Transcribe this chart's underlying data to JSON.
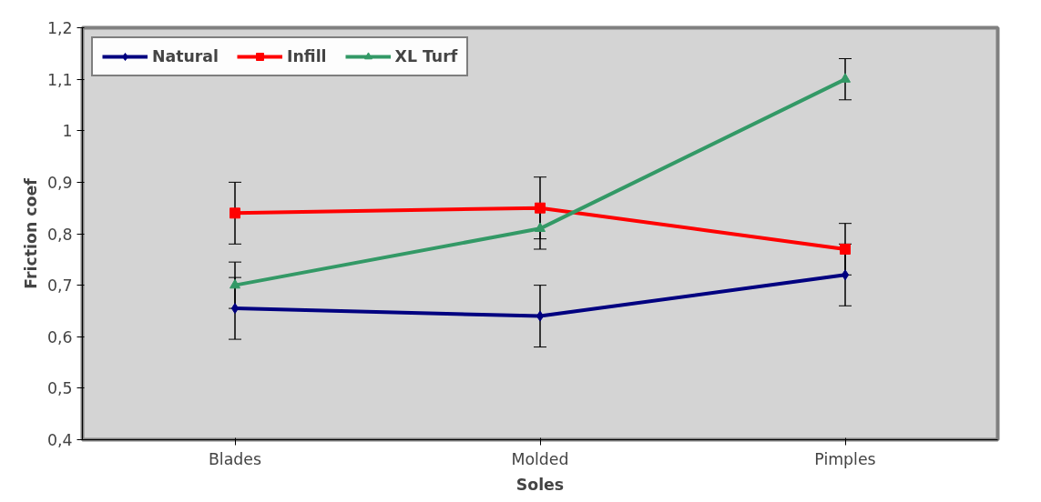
{
  "chart_data": {
    "type": "line",
    "xlabel": "Soles",
    "ylabel": "Friction coef",
    "categories": [
      "Blades",
      "Molded",
      "Pimples"
    ],
    "series": [
      {
        "name": "Natural",
        "color": "#000080",
        "marker": "diamond",
        "values": [
          0.655,
          0.64,
          0.72
        ],
        "errors": [
          0.06,
          0.06,
          0.06
        ]
      },
      {
        "name": "Infill",
        "color": "#ff0000",
        "marker": "square",
        "values": [
          0.84,
          0.85,
          0.77
        ],
        "errors": [
          0.06,
          0.06,
          0.05
        ]
      },
      {
        "name": "XL Turf",
        "color": "#339966",
        "marker": "triangle",
        "values": [
          0.7,
          0.81,
          1.1
        ],
        "errors": [
          0.045,
          0.04,
          0.04
        ]
      }
    ],
    "ylim": [
      0.4,
      1.2
    ],
    "yticks": [
      {
        "value": 0.4,
        "label": "0,4"
      },
      {
        "value": 0.5,
        "label": "0,5"
      },
      {
        "value": 0.6,
        "label": "0,6"
      },
      {
        "value": 0.7,
        "label": "0,7"
      },
      {
        "value": 0.8,
        "label": "0,8"
      },
      {
        "value": 0.9,
        "label": "0,9"
      },
      {
        "value": 1.0,
        "label": "1"
      },
      {
        "value": 1.1,
        "label": "1,1"
      },
      {
        "value": 1.2,
        "label": "1,2"
      }
    ],
    "grid": false,
    "legend": "top left",
    "line_style": "solid"
  }
}
